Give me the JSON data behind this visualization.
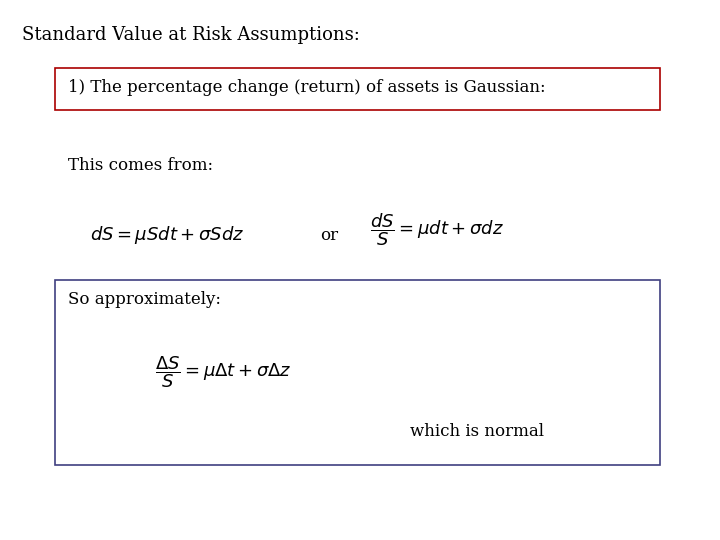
{
  "title": "Standard Value at Risk Assumptions:",
  "box1_text": "1) The percentage change (return) of assets is Gaussian:",
  "box1_color": "#aa0000",
  "this_comes_from": "This comes from:",
  "formula1": "$dS = \\mu Sdt + \\sigma Sdz$",
  "or_text": "or",
  "formula2": "$\\dfrac{dS}{S} = \\mu dt + \\sigma dz$",
  "so_approx": "So approximately:",
  "formula3": "$\\dfrac{\\Delta S}{S} = \\mu \\Delta t + \\sigma \\Delta z$",
  "which_is_normal": "which is normal",
  "bg_color": "#ffffff",
  "text_color": "#000000",
  "title_fontsize": 13,
  "label_fontsize": 12,
  "formula_fontsize": 13,
  "box2_color": "#404080"
}
